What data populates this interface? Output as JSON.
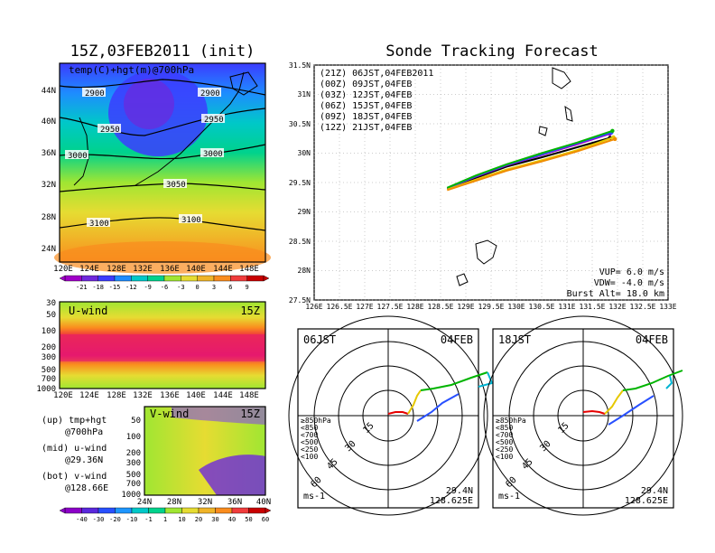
{
  "left_panel": {
    "title": "15Z,03FEB2011 (init)",
    "field_label": "temp(C)+hgt(m)@700hPa",
    "lat_labels": [
      "44N",
      "40N",
      "36N",
      "32N",
      "28N",
      "24N"
    ],
    "lon_labels": [
      "120E",
      "124E",
      "128E",
      "132E",
      "136E",
      "140E",
      "144E",
      "148E"
    ],
    "contour_labels": [
      "2900",
      "2900",
      "2950",
      "2950",
      "3000",
      "3000",
      "3050",
      "3100",
      "3100"
    ],
    "colorbar_labels": [
      "-21",
      "-18",
      "-15",
      "-12",
      "-9",
      "-6",
      "-3",
      "0",
      "3",
      "6",
      "9"
    ],
    "colorbar_colors": [
      "#a000c8",
      "#6e28dc",
      "#3c3cff",
      "#1e8cff",
      "#00c8c8",
      "#00d28c",
      "#a0e632",
      "#e6dc32",
      "#f0b428",
      "#fa8c1e",
      "#f03c3c",
      "#c80000"
    ]
  },
  "u_wind": {
    "label": "U-wind",
    "time": "15Z",
    "p_labels": [
      "30",
      "50",
      "100",
      "200",
      "300",
      "500",
      "700",
      "1000"
    ],
    "lon_labels": [
      "120E",
      "124E",
      "128E",
      "132E",
      "136E",
      "140E",
      "144E",
      "148E"
    ]
  },
  "v_wind": {
    "label": "V-wind",
    "time": "15Z",
    "p_labels": [
      "50",
      "100",
      "200",
      "300",
      "500",
      "700",
      "1000"
    ],
    "lat_labels": [
      "24N",
      "28N",
      "32N",
      "36N",
      "40N"
    ]
  },
  "side_labels": [
    {
      "a": "(up) tmp+hgt",
      "b": "@700hPa"
    },
    {
      "a": "(mid) u-wind",
      "b": "@29.36N"
    },
    {
      "a": "(bot) v-wind",
      "b": "@128.66E"
    }
  ],
  "wind_colorbar": {
    "labels": [
      "-40",
      "-30",
      "-20",
      "-10",
      "-1",
      "1",
      "10",
      "20",
      "30",
      "40",
      "50",
      "60"
    ],
    "colors": [
      "#8c00c8",
      "#5a28dc",
      "#2850ff",
      "#1e96ff",
      "#00c8c8",
      "#00d28c",
      "#a0e632",
      "#e6dc32",
      "#f0b428",
      "#fa8c1e",
      "#f03c3c",
      "#c80000"
    ]
  },
  "track_panel": {
    "title": "Sonde Tracking Forecast",
    "lat_labels": [
      "31.5N",
      "31N",
      "30.5N",
      "30N",
      "29.5N",
      "29N",
      "28.5N",
      "28N",
      "27.5N"
    ],
    "lon_labels": [
      "126E",
      "126.5E",
      "127E",
      "127.5E",
      "128E",
      "128.5E",
      "129E",
      "129.5E",
      "130E",
      "130.5E",
      "131E",
      "131.5E",
      "132E",
      "132.5E",
      "133E"
    ],
    "legend": [
      {
        "label": "(21Z)  06JST,04FEB2011",
        "color": "#000000"
      },
      {
        "label": "(00Z)  09JST,04FEB",
        "color": "#a000c8"
      },
      {
        "label": "(03Z)  12JST,04FEB",
        "color": "#2850ff"
      },
      {
        "label": "(06Z)  15JST,04FEB",
        "color": "#00b400"
      },
      {
        "label": "(09Z)  18JST,04FEB",
        "color": "#e6c800"
      },
      {
        "label": "(12Z)  21JST,04FEB",
        "color": "#f08c00"
      }
    ],
    "vup": "VUP=  6.0 m/s",
    "vdw": "VDW=  -4.0 m/s",
    "burst": "Burst Alt=  18.0 km"
  },
  "polar_left": {
    "time_label": "06JST",
    "date_label": "04FEB",
    "ring_labels": [
      "15",
      "30",
      "45",
      "60"
    ],
    "unit": "ms-1",
    "coord_lat": "29.4N",
    "coord_lon": "128.625E"
  },
  "polar_right": {
    "time_label": "18JST",
    "date_label": "04FEB",
    "ring_labels": [
      "15",
      "30",
      "45",
      "60"
    ],
    "unit": "ms-1",
    "coord_lat": "29.4N",
    "coord_lon": "128.625E"
  },
  "hodo_legend": [
    {
      "label": "≥850hPa",
      "color": "#e60000"
    },
    {
      "label": "<850",
      "color": "#f08c00"
    },
    {
      "label": "<700",
      "color": "#e6c800"
    },
    {
      "label": "<500",
      "color": "#00b400"
    },
    {
      "label": "<250",
      "color": "#00b4d2"
    },
    {
      "label": "<100",
      "color": "#2850ff"
    }
  ],
  "chart_data": [
    {
      "type": "line",
      "title": "Sonde Tracking Forecast",
      "xlim": [
        126,
        133
      ],
      "ylim": [
        27.5,
        31.5
      ],
      "series": [
        {
          "name": "(21Z) 06JST,04FEB2011",
          "points": [
            [
              128.63,
              29.39
            ],
            [
              129.2,
              29.58
            ],
            [
              129.8,
              29.77
            ],
            [
              130.5,
              29.93
            ],
            [
              131.2,
              30.1
            ],
            [
              131.85,
              30.26
            ]
          ]
        },
        {
          "name": "(00Z) 09JST,04FEB",
          "points": [
            [
              128.63,
              29.4
            ],
            [
              129.2,
              29.6
            ],
            [
              129.8,
              29.79
            ],
            [
              130.5,
              29.97
            ],
            [
              131.2,
              30.15
            ],
            [
              131.85,
              30.33
            ]
          ]
        },
        {
          "name": "(03Z) 12JST,04FEB",
          "points": [
            [
              128.63,
              29.4
            ],
            [
              129.2,
              29.61
            ],
            [
              129.8,
              29.8
            ],
            [
              130.5,
              29.98
            ],
            [
              131.2,
              30.17
            ],
            [
              131.88,
              30.35
            ]
          ]
        },
        {
          "name": "(06Z) 15JST,04FEB",
          "points": [
            [
              128.63,
              29.41
            ],
            [
              129.2,
              29.62
            ],
            [
              129.8,
              29.81
            ],
            [
              130.5,
              30.0
            ],
            [
              131.2,
              30.18
            ],
            [
              131.9,
              30.38
            ]
          ]
        },
        {
          "name": "(09Z) 18JST,04FEB",
          "points": [
            [
              128.63,
              29.38
            ],
            [
              129.2,
              29.55
            ],
            [
              129.8,
              29.72
            ],
            [
              130.5,
              29.88
            ],
            [
              131.2,
              30.05
            ],
            [
              131.92,
              30.27
            ]
          ]
        },
        {
          "name": "(12Z) 21JST,04FEB",
          "points": [
            [
              128.63,
              29.37
            ],
            [
              129.2,
              29.53
            ],
            [
              129.8,
              29.7
            ],
            [
              130.5,
              29.86
            ],
            [
              131.2,
              30.03
            ],
            [
              131.95,
              30.24
            ]
          ]
        }
      ]
    }
  ]
}
